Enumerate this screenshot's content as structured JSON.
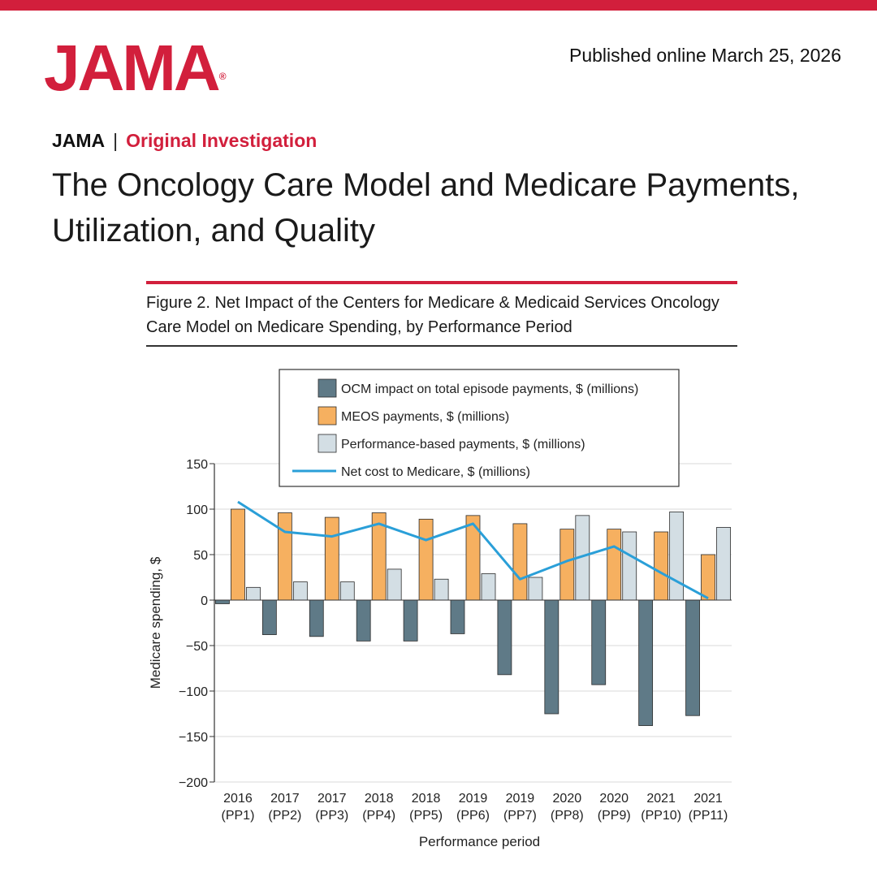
{
  "header": {
    "logo": "JAMA",
    "logo_mark": "®",
    "published": "Published online March 25, 2026"
  },
  "article": {
    "journal": "JAMA",
    "separator": "|",
    "section": "Original Investigation",
    "title": "The Oncology Care Model and Medicare Payments, Utilization, and Quality"
  },
  "figure": {
    "caption": "Figure 2. Net Impact of the Centers for Medicare & Medicaid Services Oncology Care Model on Medicare Spending, by Performance Period"
  },
  "colors": {
    "brand": "#d21f3c",
    "ocm": "#5f7a87",
    "meos": "#f6b060",
    "performance": "#d3dee4",
    "net": "#2a9fd8"
  },
  "chart_data": {
    "type": "bar",
    "xlabel": "Performance period",
    "ylabel": "Medicare spending, $",
    "ylim": [
      -200,
      150
    ],
    "yticks": [
      150,
      100,
      50,
      0,
      -50,
      -100,
      -150,
      -200
    ],
    "grid": true,
    "legend_position": "top",
    "categories": [
      [
        "2016",
        "(PP1)"
      ],
      [
        "2017",
        "(PP2)"
      ],
      [
        "2017",
        "(PP3)"
      ],
      [
        "2018",
        "(PP4)"
      ],
      [
        "2018",
        "(PP5)"
      ],
      [
        "2019",
        "(PP6)"
      ],
      [
        "2019",
        "(PP7)"
      ],
      [
        "2020",
        "(PP8)"
      ],
      [
        "2020",
        "(PP9)"
      ],
      [
        "2021",
        "(PP10)"
      ],
      [
        "2021",
        "(PP11)"
      ]
    ],
    "series": [
      {
        "name": "OCM impact on total episode payments, $ (millions)",
        "type": "bar",
        "values": [
          -4,
          -38,
          -40,
          -45,
          -45,
          -37,
          -82,
          -125,
          -93,
          -138,
          -127
        ]
      },
      {
        "name": "MEOS payments, $ (millions)",
        "type": "bar",
        "values": [
          100,
          96,
          91,
          96,
          89,
          93,
          84,
          78,
          78,
          75,
          50
        ]
      },
      {
        "name": "Performance-based payments, $ (millions)",
        "type": "bar",
        "values": [
          14,
          20,
          20,
          34,
          23,
          29,
          25,
          93,
          75,
          97,
          80
        ]
      },
      {
        "name": "Net cost to Medicare, $ (millions)",
        "type": "line",
        "values": [
          108,
          75,
          70,
          84,
          66,
          84,
          23,
          43,
          59,
          30,
          2
        ]
      }
    ]
  }
}
